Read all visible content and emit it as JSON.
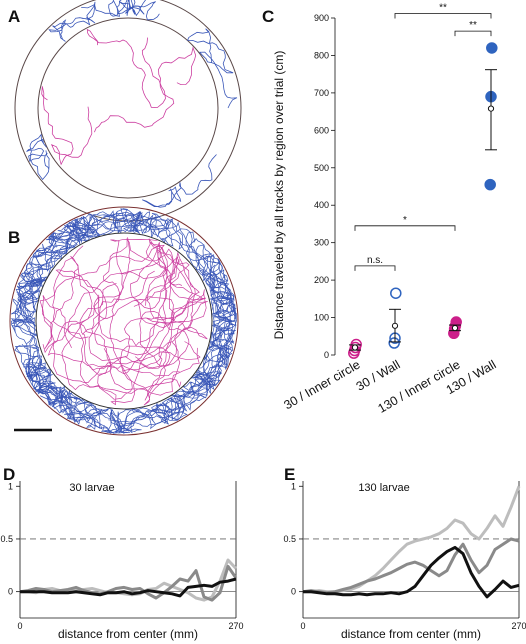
{
  "panels": {
    "A": {
      "letter": "A"
    },
    "B": {
      "letter": "B"
    },
    "C": {
      "letter": "C"
    },
    "D": {
      "letter": "D"
    },
    "E": {
      "letter": "E"
    }
  },
  "colors": {
    "wall_track": "#3a57b8",
    "inner_track": "#cc3fa0",
    "blue_marker": "#2f64bf",
    "magenta_marker": "#cc1f8a",
    "arena_outline": "#5a4848",
    "curve_dark": "#111111",
    "curve_mid": "#8a8a8a",
    "curve_light": "#bdbdbd"
  },
  "chart_data": [
    {
      "panel": "C",
      "type": "scatter",
      "ylabel": "Distance traveled by all tracks by region over trial (cm)",
      "ylim": [
        0,
        900
      ],
      "yticks": [
        0,
        100,
        200,
        300,
        400,
        500,
        600,
        700,
        800,
        900
      ],
      "categories": [
        "30 / Inner circle",
        "30 / Wall",
        "130 / Inner circle",
        "130 / Wall"
      ],
      "points": [
        {
          "category": "30 / Inner circle",
          "values": [
            5,
            12,
            20,
            28
          ],
          "marker": "open",
          "color": "magenta"
        },
        {
          "category": "30 / Wall",
          "values": [
            32,
            45,
            165
          ],
          "marker": "open",
          "color": "blue"
        },
        {
          "category": "130 / Inner circle",
          "values": [
            58,
            70,
            78,
            88
          ],
          "marker": "filled",
          "color": "magenta"
        },
        {
          "category": "130 / Wall",
          "values": [
            455,
            690,
            820
          ],
          "marker": "filled",
          "color": "blue"
        }
      ],
      "summary": [
        {
          "category": "30 / Inner circle",
          "mean": 20,
          "lower": 13,
          "upper": 27
        },
        {
          "category": "30 / Wall",
          "mean": 78,
          "lower": 35,
          "upper": 122
        },
        {
          "category": "130 / Inner circle",
          "mean": 72,
          "lower": 65,
          "upper": 80
        },
        {
          "category": "130 / Wall",
          "mean": 658,
          "lower": 548,
          "upper": 762
        }
      ],
      "significance": [
        {
          "from": "30 / Inner circle",
          "to": "30 / Wall",
          "label": "n.s.",
          "y": 238
        },
        {
          "from": "30 / Inner circle",
          "to": "130 / Inner circle",
          "label": "*",
          "y": 345
        },
        {
          "from": "130 / Inner circle",
          "to": "130 / Wall",
          "label": "**",
          "y": 865
        },
        {
          "from": "30 / Wall",
          "to": "130 / Wall",
          "label": "**",
          "y": 912
        }
      ]
    },
    {
      "panel": "D",
      "type": "line",
      "title": "30 larvae",
      "xlabel": "distance from center (mm)",
      "xlim": [
        0,
        270
      ],
      "ylim": [
        -0.25,
        1.05
      ],
      "xticks": [
        0,
        270
      ],
      "yticks": [
        0,
        0.5,
        1
      ],
      "reference_lines": [
        0,
        0.5
      ],
      "x": [
        0,
        10,
        20,
        30,
        40,
        50,
        60,
        70,
        80,
        90,
        100,
        110,
        120,
        130,
        140,
        150,
        160,
        170,
        180,
        190,
        200,
        210,
        220,
        230,
        240,
        250,
        260,
        270
      ],
      "series": [
        {
          "shade": "dark",
          "values": [
            0,
            0,
            0,
            0,
            -0.01,
            -0.01,
            -0.01,
            0,
            -0.01,
            -0.02,
            -0.03,
            -0.01,
            -0.01,
            0,
            -0.02,
            -0.01,
            0.01,
            0,
            -0.01,
            -0.02,
            -0.04,
            0.04,
            0.05,
            0.06,
            0.05,
            0.09,
            0.1,
            0.12
          ]
        },
        {
          "shade": "mid",
          "values": [
            0,
            0.01,
            0.03,
            0.02,
            0,
            0.01,
            0.02,
            0.04,
            0.01,
            -0.01,
            -0.02,
            0,
            0.03,
            0.04,
            0.02,
            0.03,
            -0.02,
            -0.06,
            -0.01,
            0.05,
            0.12,
            0.1,
            0.2,
            -0.05,
            -0.08,
            -0.01,
            0.24,
            0.13
          ]
        },
        {
          "shade": "light",
          "values": [
            0,
            0,
            -0.01,
            0.02,
            0.03,
            0.01,
            0,
            0.01,
            0.02,
            0.03,
            0.01,
            -0.01,
            -0.01,
            -0.02,
            -0.03,
            -0.02,
            0.02,
            0.03,
            0.08,
            0.05,
            0.02,
            -0.01,
            -0.06,
            -0.08,
            -0.05,
            0.1,
            0.3,
            0.22
          ]
        }
      ]
    },
    {
      "panel": "E",
      "type": "line",
      "title": "130 larvae",
      "xlabel": "distance from center (mm)",
      "xlim": [
        0,
        270
      ],
      "ylim": [
        -0.25,
        1.05
      ],
      "xticks": [
        0,
        270
      ],
      "yticks": [
        0,
        0.5,
        1
      ],
      "reference_lines": [
        0,
        0.5
      ],
      "x": [
        0,
        10,
        20,
        30,
        40,
        50,
        60,
        70,
        80,
        90,
        100,
        110,
        120,
        130,
        140,
        150,
        160,
        170,
        180,
        190,
        200,
        210,
        220,
        230,
        240,
        250,
        260,
        270
      ],
      "series": [
        {
          "shade": "dark",
          "values": [
            0,
            0,
            -0.01,
            -0.02,
            -0.02,
            -0.03,
            -0.03,
            -0.02,
            -0.03,
            -0.02,
            -0.02,
            -0.01,
            -0.02,
            0,
            0.05,
            0.15,
            0.25,
            0.32,
            0.38,
            0.42,
            0.36,
            0.18,
            0.05,
            -0.05,
            0.02,
            0.1,
            0.04,
            0.06
          ]
        },
        {
          "shade": "mid",
          "values": [
            0,
            0.01,
            0,
            -0.01,
            0,
            0.02,
            0.04,
            0.07,
            0.1,
            0.12,
            0.15,
            0.18,
            0.22,
            0.26,
            0.28,
            0.25,
            0.2,
            0.15,
            0.2,
            0.35,
            0.45,
            0.3,
            0.18,
            0.25,
            0.4,
            0.45,
            0.5,
            0.48
          ]
        },
        {
          "shade": "light",
          "values": [
            0,
            0,
            0.01,
            0,
            0,
            0.01,
            0.02,
            0.05,
            0.1,
            0.15,
            0.22,
            0.3,
            0.38,
            0.45,
            0.48,
            0.5,
            0.52,
            0.55,
            0.6,
            0.68,
            0.65,
            0.55,
            0.5,
            0.6,
            0.72,
            0.62,
            0.8,
            1.0
          ]
        }
      ]
    }
  ]
}
